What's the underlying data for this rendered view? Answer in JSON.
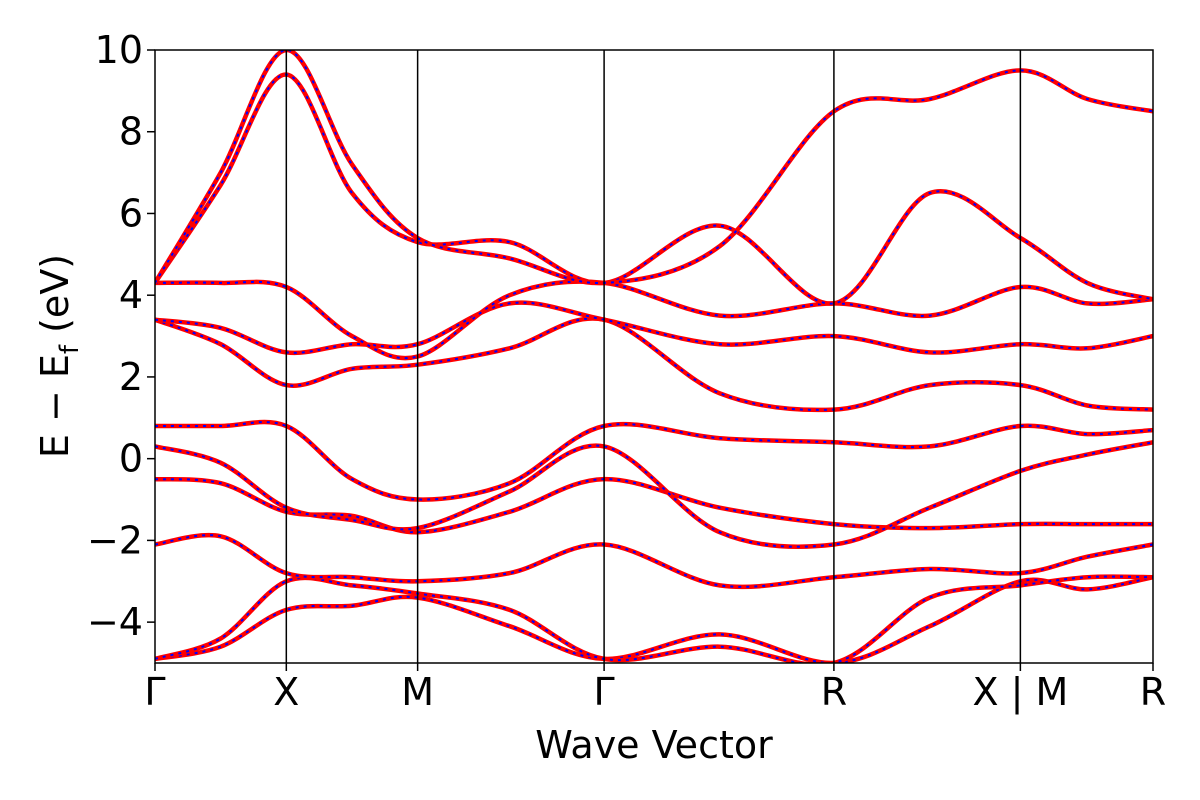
{
  "chart_data": {
    "type": "line",
    "xlabel": "Wave Vector",
    "ylabel_main": "E − E",
    "ylabel_sub": "f",
    "ylabel_unit": " (eV)",
    "ylim": [
      -5,
      10
    ],
    "yticks": [
      -4,
      -2,
      0,
      2,
      4,
      6,
      8,
      10
    ],
    "ytick_labels": [
      "−4",
      "−2",
      "0",
      "2",
      "4",
      "6",
      "8",
      "10"
    ],
    "xlim": [
      0,
      7.6
    ],
    "kpoints": [
      {
        "label": "Γ",
        "x": 0
      },
      {
        "label": "X",
        "x": 1.0
      },
      {
        "label": "M",
        "x": 2.0
      },
      {
        "label": "Γ",
        "x": 3.42
      },
      {
        "label": "R",
        "x": 5.17
      },
      {
        "label": "X | M",
        "x": 6.59
      },
      {
        "label": "R",
        "x": 7.6
      }
    ],
    "grid": false,
    "line_colors": {
      "band": "#ff0000",
      "overlay": "#0000ff"
    },
    "series": [
      {
        "x": [
          0,
          0.5,
          1.0,
          1.5,
          2.0,
          2.7,
          3.42,
          4.3,
          5.17,
          5.9,
          6.59,
          7.1,
          7.6
        ],
        "y": [
          -4.9,
          -4.6,
          -3.7,
          -3.6,
          -3.4,
          -4.1,
          -4.9,
          -4.3,
          -5.0,
          -4.1,
          -3.0,
          -3.2,
          -2.9
        ]
      },
      {
        "x": [
          0,
          0.5,
          1.0,
          1.5,
          2.0,
          2.7,
          3.42,
          4.3,
          5.17,
          5.9,
          6.59,
          7.1,
          7.6
        ],
        "y": [
          -4.9,
          -4.4,
          -3.0,
          -3.1,
          -3.3,
          -3.7,
          -4.9,
          -4.6,
          -5.0,
          -3.4,
          -3.1,
          -2.9,
          -2.9
        ]
      },
      {
        "x": [
          0,
          0.5,
          1.0,
          1.5,
          2.0,
          2.7,
          3.42,
          4.3,
          5.17,
          5.9,
          6.59,
          7.1,
          7.6
        ],
        "y": [
          -2.1,
          -1.9,
          -2.8,
          -2.9,
          -3.0,
          -2.8,
          -2.1,
          -3.1,
          -2.9,
          -2.7,
          -2.8,
          -2.4,
          -2.1
        ]
      },
      {
        "x": [
          0,
          0.5,
          1.0,
          1.5,
          2.0,
          2.7,
          3.42,
          4.3,
          5.17,
          5.9,
          6.59,
          7.1,
          7.6
        ],
        "y": [
          -0.5,
          -0.6,
          -1.3,
          -1.4,
          -1.8,
          -1.3,
          -0.5,
          -1.2,
          -1.6,
          -1.7,
          -1.6,
          -1.6,
          -1.6
        ]
      },
      {
        "x": [
          0,
          0.5,
          1.0,
          1.5,
          2.0,
          2.7,
          3.42,
          4.3,
          5.17,
          5.9,
          6.59,
          7.1,
          7.6
        ],
        "y": [
          0.3,
          -0.1,
          -1.2,
          -1.5,
          -1.7,
          -0.8,
          0.3,
          -1.8,
          -2.1,
          -1.2,
          -0.3,
          0.1,
          0.4
        ]
      },
      {
        "x": [
          0,
          0.5,
          1.0,
          1.5,
          2.0,
          2.7,
          3.42,
          4.3,
          5.17,
          5.9,
          6.59,
          7.1,
          7.6
        ],
        "y": [
          0.8,
          0.8,
          0.8,
          -0.5,
          -1.0,
          -0.6,
          0.8,
          0.5,
          0.4,
          0.3,
          0.8,
          0.6,
          0.7
        ]
      },
      {
        "x": [
          0,
          0.5,
          1.0,
          1.5,
          2.0,
          2.7,
          3.42,
          4.3,
          5.17,
          5.9,
          6.59,
          7.1,
          7.6
        ],
        "y": [
          3.4,
          2.8,
          1.8,
          2.2,
          2.3,
          2.7,
          3.4,
          1.6,
          1.2,
          1.8,
          1.8,
          1.3,
          1.2
        ]
      },
      {
        "x": [
          0,
          0.5,
          1.0,
          1.5,
          2.0,
          2.7,
          3.42,
          4.3,
          5.17,
          5.9,
          6.59,
          7.1,
          7.6
        ],
        "y": [
          3.4,
          3.2,
          2.6,
          2.8,
          2.8,
          3.8,
          3.4,
          2.8,
          3.0,
          2.6,
          2.8,
          2.7,
          3.0
        ]
      },
      {
        "x": [
          0,
          0.5,
          1.0,
          1.5,
          2.0,
          2.7,
          3.42,
          4.3,
          5.17,
          5.9,
          6.59,
          7.1,
          7.6
        ],
        "y": [
          4.3,
          4.3,
          4.2,
          3.0,
          2.5,
          4.0,
          4.3,
          3.5,
          3.8,
          3.5,
          4.2,
          3.8,
          3.9
        ]
      },
      {
        "x": [
          0,
          0.5,
          1.0,
          1.5,
          2.0,
          2.7,
          3.42,
          4.3,
          5.17,
          5.9,
          6.59,
          7.1,
          7.6
        ],
        "y": [
          4.3,
          6.7,
          9.4,
          6.5,
          5.3,
          5.3,
          4.3,
          5.7,
          3.8,
          6.5,
          5.4,
          4.3,
          3.9
        ]
      },
      {
        "x": [
          0,
          0.5,
          1.0,
          1.5,
          2.0,
          2.7,
          3.42,
          4.3,
          5.17,
          5.9,
          6.59,
          7.1,
          7.6
        ],
        "y": [
          4.3,
          7.0,
          10.0,
          7.2,
          5.4,
          4.9,
          4.3,
          5.2,
          8.5,
          8.8,
          9.5,
          8.8,
          8.5
        ]
      }
    ]
  }
}
